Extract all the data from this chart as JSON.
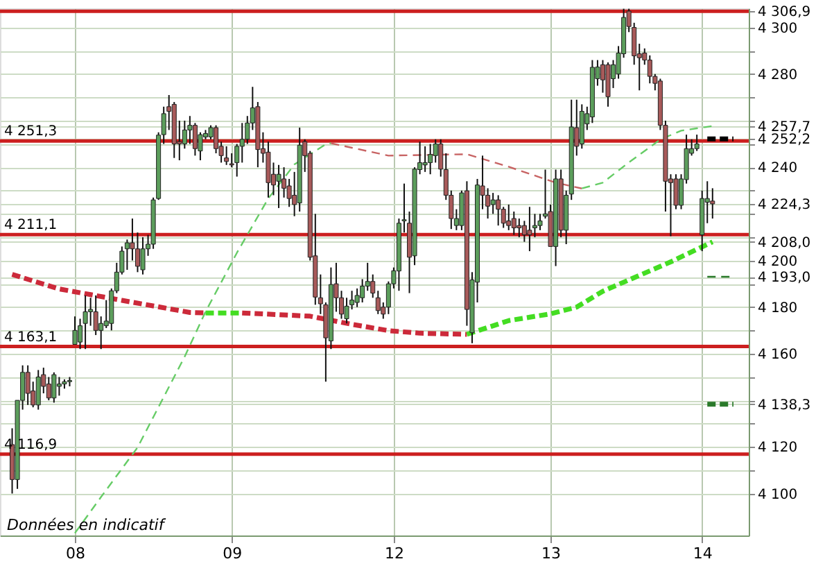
{
  "chart_data": {
    "type": "candlestick",
    "categories": [
      null,
      null,
      null,
      null,
      null,
      null,
      null,
      null,
      null,
      null,
      null,
      null,
      "08",
      null,
      null,
      null,
      null,
      null,
      null,
      null,
      null,
      null,
      null,
      null,
      null,
      null,
      null,
      null,
      null,
      null,
      null,
      null,
      null,
      null,
      null,
      null,
      null,
      null,
      null,
      null,
      null,
      null,
      "09",
      null,
      null,
      null,
      null,
      null,
      null,
      null,
      null,
      null,
      null,
      null,
      null,
      null,
      null,
      null,
      null,
      null,
      null,
      null,
      null,
      null,
      null,
      null,
      null,
      null,
      null,
      null,
      null,
      null,
      null,
      "12",
      null,
      null,
      null,
      null,
      null,
      null,
      null,
      null,
      null,
      null,
      null,
      null,
      null,
      null,
      null,
      null,
      null,
      null,
      null,
      null,
      null,
      null,
      null,
      null,
      null,
      null,
      null,
      null,
      null,
      "13",
      null,
      null,
      null,
      null,
      null,
      null,
      null,
      null,
      null,
      null,
      null,
      null,
      null,
      null,
      null,
      null,
      null,
      null,
      null,
      null,
      null,
      null,
      null,
      null,
      null,
      null,
      null,
      null,
      "14",
      null,
      null,
      null,
      null,
      null,
      null,
      null
    ],
    "ohlc": [
      [
        4121,
        4128,
        4100,
        4106
      ],
      [
        4106,
        4140,
        4102,
        4140
      ],
      [
        4140,
        4155,
        4136,
        4152
      ],
      [
        4152,
        4155,
        4138,
        4143
      ],
      [
        4144,
        4148,
        4137,
        4138
      ],
      [
        4138,
        4153,
        4136,
        4150
      ],
      [
        4151,
        4154,
        4143,
        4146
      ],
      [
        4147,
        4150,
        4140,
        4141
      ],
      [
        4141,
        4152,
        4139,
        4151
      ],
      [
        4146,
        4150,
        4142,
        4147
      ],
      [
        4147,
        4149,
        4145,
        4148
      ],
      [
        4148,
        4150,
        4146,
        4148.5
      ],
      [
        4164,
        4176,
        4164,
        4170
      ],
      [
        4165,
        4175,
        4162,
        4172
      ],
      [
        4173,
        4185,
        4162,
        4178
      ],
      [
        4178,
        4184,
        4172,
        4179
      ],
      [
        4178,
        4185,
        4168,
        4170
      ],
      [
        4170,
        4176,
        4162,
        4173
      ],
      [
        4172,
        4183,
        4171,
        4174
      ],
      [
        4173,
        4188,
        4170,
        4187
      ],
      [
        4187,
        4199,
        4186,
        4195
      ],
      [
        4195,
        4206,
        4194,
        4204
      ],
      [
        4205,
        4209,
        4196,
        4207.6
      ],
      [
        4207.6,
        4218,
        4200,
        4205
      ],
      [
        4205,
        4212,
        4195,
        4197.5
      ],
      [
        4196,
        4210,
        4194,
        4205
      ],
      [
        4205,
        4211,
        4202,
        4207
      ],
      [
        4207,
        4227,
        4205,
        4226
      ],
      [
        4226.6,
        4255,
        4226,
        4253.8
      ],
      [
        4254,
        4266,
        4250,
        4263
      ],
      [
        4266,
        4271,
        4256,
        4264
      ],
      [
        4267,
        4268,
        4244,
        4250
      ],
      [
        4251,
        4260,
        4243,
        4250
      ],
      [
        4250,
        4260,
        4248,
        4256
      ],
      [
        4256,
        4262,
        4250,
        4258
      ],
      [
        4258,
        4259,
        4245,
        4248
      ],
      [
        4247,
        4255,
        4243,
        4254
      ],
      [
        4253,
        4256,
        4252,
        4254.5
      ],
      [
        4253,
        4258,
        4252,
        4257
      ],
      [
        4257,
        4258,
        4246,
        4248
      ],
      [
        4249,
        4251,
        4242,
        4245
      ],
      [
        4244,
        4249,
        4241,
        4242.5
      ],
      [
        4241.5,
        4246,
        4240,
        4241
      ],
      [
        4242,
        4250,
        4236,
        4249
      ],
      [
        4249,
        4259,
        4242,
        4252
      ],
      [
        4252,
        4262,
        4250,
        4259
      ],
      [
        4259,
        4274.5,
        4256,
        4265.5
      ],
      [
        4266,
        4268,
        4240,
        4247.6
      ],
      [
        4248,
        4255,
        4242,
        4246
      ],
      [
        4246.5,
        4251,
        4227,
        4233.4
      ],
      [
        4237,
        4242,
        4228,
        4232.4
      ],
      [
        4234,
        4241,
        4222.5,
        4237
      ],
      [
        4235,
        4240,
        4227,
        4231
      ],
      [
        4232,
        4235,
        4223,
        4226.6
      ],
      [
        4228,
        4238,
        4219,
        4224
      ],
      [
        4224.7,
        4257,
        4221,
        4249.5
      ],
      [
        4251,
        4252,
        4238,
        4245
      ],
      [
        4246,
        4247,
        4200,
        4201.4
      ],
      [
        4202,
        4220,
        4181,
        4184.3
      ],
      [
        4184,
        4194,
        4177,
        4181.4
      ],
      [
        4181,
        4182,
        4148,
        4166.8
      ],
      [
        4165.5,
        4197,
        4162,
        4189.7
      ],
      [
        4190,
        4199,
        4178,
        4184
      ],
      [
        4184,
        4187,
        4175,
        4177
      ],
      [
        4175,
        4184,
        4173,
        4180.4
      ],
      [
        4181,
        4187,
        4179,
        4183
      ],
      [
        4182,
        4188,
        4180,
        4185
      ],
      [
        4184,
        4192,
        4182,
        4189
      ],
      [
        4189,
        4199,
        4187,
        4191
      ],
      [
        4191,
        4194,
        4184,
        4186
      ],
      [
        4184,
        4187,
        4177,
        4178.5
      ],
      [
        4180,
        4182,
        4175,
        4177
      ],
      [
        4180,
        4191,
        4177,
        4190
      ],
      [
        4190,
        4197,
        4188,
        4195.6
      ],
      [
        4195.5,
        4218,
        4187,
        4216
      ],
      [
        4217,
        4233,
        4212,
        4217.5
      ],
      [
        4216,
        4221,
        4186,
        4201.4
      ],
      [
        4202,
        4240,
        4198,
        4239.2
      ],
      [
        4239,
        4251,
        4237,
        4242
      ],
      [
        4241,
        4249,
        4238,
        4242
      ],
      [
        4242,
        4250,
        4237,
        4245.5
      ],
      [
        4245,
        4252,
        4242,
        4250
      ],
      [
        4250,
        4252,
        4236,
        4239.2
      ],
      [
        4239,
        4246,
        4226,
        4228
      ],
      [
        4228,
        4230,
        4213.5,
        4218
      ],
      [
        4215,
        4222,
        4213,
        4218
      ],
      [
        4215,
        4230,
        4213,
        4229
      ],
      [
        4229.9,
        4234,
        4172,
        4179
      ],
      [
        4169,
        4195,
        4164.5,
        4191.7
      ],
      [
        4190.7,
        4235,
        4182,
        4232.4
      ],
      [
        4232,
        4245,
        4222,
        4228
      ],
      [
        4228,
        4231,
        4218,
        4223.3
      ],
      [
        4224,
        4229,
        4220,
        4226
      ],
      [
        4226,
        4228,
        4215,
        4222
      ],
      [
        4222,
        4223,
        4214,
        4216
      ],
      [
        4217,
        4224,
        4213,
        4215
      ],
      [
        4218,
        4221,
        4211,
        4214
      ],
      [
        4215,
        4218,
        4210,
        4214
      ],
      [
        4215,
        4217,
        4208,
        4211
      ],
      [
        4213,
        4223,
        4204,
        4211
      ],
      [
        4214,
        4220,
        4210,
        4215
      ],
      [
        4215,
        4220,
        4213,
        4217
      ],
      [
        4219,
        4239,
        4218,
        4220
      ],
      [
        4221,
        4224,
        4206,
        4206
      ],
      [
        4206,
        4239,
        4197.6,
        4235
      ],
      [
        4235,
        4239,
        4210,
        4213
      ],
      [
        4213,
        4230,
        4207,
        4228
      ],
      [
        4228.5,
        4269,
        4226,
        4257.3
      ],
      [
        4257,
        4269,
        4245,
        4249
      ],
      [
        4250,
        4267,
        4248,
        4264
      ],
      [
        4258.6,
        4266,
        4256,
        4263
      ],
      [
        4261.6,
        4286,
        4259,
        4282.9
      ],
      [
        4278,
        4286,
        4275,
        4283
      ],
      [
        4284,
        4286,
        4272,
        4277.5
      ],
      [
        4284,
        4285,
        4266,
        4270.3
      ],
      [
        4278,
        4286,
        4274,
        4284
      ],
      [
        4280,
        4292,
        4278,
        4289
      ],
      [
        4288.7,
        4308,
        4287,
        4304.3
      ],
      [
        4307,
        4308,
        4298,
        4300.4
      ],
      [
        4300,
        4302,
        4284,
        4287.8
      ],
      [
        4288.7,
        4293,
        4273,
        4287
      ],
      [
        4289,
        4291,
        4284,
        4286
      ],
      [
        4286,
        4288,
        4276,
        4279
      ],
      [
        4279,
        4280,
        4273,
        4276
      ],
      [
        4277,
        4278,
        4256,
        4258
      ],
      [
        4258,
        4260,
        4221,
        4234
      ],
      [
        4235,
        4237,
        4210.4,
        4233.4
      ],
      [
        4235,
        4237,
        4222,
        4223.7
      ],
      [
        4223.7,
        4237,
        4222,
        4235
      ],
      [
        4234.7,
        4254,
        4233,
        4248
      ],
      [
        4246,
        4252,
        4245,
        4248
      ],
      [
        4248,
        4254,
        4247,
        4250
      ],
      [
        4211,
        4230,
        4204,
        4226.6
      ],
      [
        4225,
        4234,
        4216,
        4226.6
      ],
      [
        4225.5,
        4231,
        4218,
        4224.3
      ],
      null,
      null,
      null,
      null,
      null
    ],
    "series": [
      {
        "type": "line",
        "color": "#cc2a3a",
        "line_style": "dashed",
        "values": [
          4194,
          null,
          null,
          null,
          null,
          null,
          null,
          null,
          null,
          4187.8,
          null,
          null,
          null,
          null,
          null,
          null,
          null,
          null,
          null,
          null,
          null,
          4182.9,
          null,
          null,
          null,
          null,
          null,
          null,
          null,
          null,
          null,
          null,
          null,
          null,
          4177.7,
          null,
          null,
          4177.5,
          null,
          null,
          null,
          null,
          null,
          null,
          null,
          null,
          null,
          null,
          null,
          null,
          null,
          null,
          null,
          null,
          null,
          null,
          null,
          null,
          null,
          null,
          null,
          null,
          null,
          null,
          null,
          null,
          null,
          null,
          null,
          null,
          null,
          null,
          null,
          null,
          null,
          null,
          null,
          null,
          null,
          null,
          null,
          null,
          null,
          null,
          null,
          null,
          null,
          null,
          null,
          null,
          null,
          null,
          null,
          null,
          null,
          null,
          null,
          null,
          null,
          null,
          null,
          null,
          null,
          null,
          null,
          null,
          null,
          null,
          null,
          null,
          null,
          null,
          null,
          null,
          null,
          null,
          null,
          null,
          null,
          null,
          null,
          null,
          null,
          null,
          null,
          null,
          null,
          null,
          null,
          null,
          null,
          null,
          null,
          null,
          null,
          null,
          null,
          null,
          null,
          null
        ]
      },
      {
        "type": "line",
        "color": "#44dd22",
        "line_style": "dashed",
        "values": [
          null,
          null,
          null,
          null,
          null,
          null,
          null,
          null,
          null,
          null,
          null,
          null,
          null,
          null,
          null,
          null,
          null,
          null,
          null,
          null,
          null,
          null,
          null,
          null,
          null,
          null,
          null,
          null,
          null,
          null,
          null,
          null,
          null,
          null,
          null,
          null,
          null,
          4177.5,
          null,
          null,
          null,
          null,
          null,
          null,
          4177.5,
          null,
          null,
          null,
          null,
          null,
          null,
          null,
          null,
          null,
          null,
          null,
          null,
          null,
          null,
          null,
          null,
          null,
          null,
          null,
          null,
          null,
          null,
          null,
          null,
          null,
          null,
          null,
          null,
          null,
          null,
          null,
          null,
          null,
          null,
          null,
          null,
          null,
          null,
          null,
          null,
          null,
          null,
          null,
          null,
          null,
          null,
          null,
          null,
          null,
          null,
          null,
          null,
          null,
          null,
          null,
          null,
          null,
          null,
          null,
          null,
          null,
          null,
          null,
          null,
          null,
          null,
          null,
          null,
          null,
          null,
          null,
          null,
          null,
          null,
          null,
          null,
          null,
          null,
          null,
          null,
          null,
          null,
          null,
          null,
          null,
          null,
          null,
          null,
          null,
          null,
          null,
          null,
          null,
          null,
          null
        ]
      },
      {
        "type": "line",
        "color": "#cc2a3a",
        "line_style": "dashed",
        "values": [
          null,
          null,
          null,
          null,
          null,
          null,
          null,
          null,
          null,
          null,
          null,
          null,
          null,
          null,
          null,
          null,
          null,
          null,
          null,
          null,
          null,
          null,
          null,
          null,
          null,
          null,
          null,
          null,
          null,
          null,
          null,
          null,
          null,
          null,
          null,
          null,
          null,
          null,
          null,
          null,
          null,
          null,
          null,
          null,
          4177.5,
          null,
          null,
          null,
          null,
          null,
          null,
          null,
          null,
          null,
          null,
          null,
          null,
          4176.1,
          null,
          null,
          null,
          null,
          null,
          null,
          null,
          4172.6,
          null,
          null,
          null,
          null,
          null,
          null,
          4169.9,
          null,
          null,
          null,
          null,
          null,
          4168.8,
          null,
          null,
          null,
          null,
          null,
          null,
          null,
          null,
          4168.3,
          null,
          null,
          null,
          null,
          null,
          null,
          null,
          null,
          null,
          null,
          null,
          null,
          null,
          null,
          null,
          null,
          null,
          null,
          null,
          null,
          null,
          null,
          null,
          null,
          null,
          null,
          null,
          null,
          null,
          null,
          null,
          null,
          null,
          null,
          null,
          null,
          null,
          null,
          null,
          null,
          null,
          null,
          null,
          null,
          null,
          null,
          null,
          null,
          null,
          null,
          null,
          null
        ]
      },
      {
        "type": "line",
        "color": "#44dd22",
        "line_style": "dashed",
        "values": [
          null,
          null,
          null,
          null,
          null,
          null,
          null,
          null,
          null,
          null,
          null,
          null,
          null,
          null,
          null,
          null,
          null,
          null,
          null,
          null,
          null,
          null,
          null,
          null,
          null,
          null,
          null,
          null,
          null,
          null,
          null,
          null,
          null,
          null,
          null,
          null,
          null,
          null,
          null,
          null,
          null,
          null,
          null,
          null,
          null,
          null,
          null,
          null,
          null,
          null,
          null,
          null,
          null,
          null,
          null,
          null,
          null,
          null,
          null,
          null,
          null,
          null,
          null,
          null,
          null,
          null,
          null,
          null,
          null,
          null,
          null,
          null,
          null,
          null,
          null,
          null,
          null,
          null,
          null,
          null,
          null,
          null,
          null,
          null,
          null,
          null,
          null,
          4168.3,
          null,
          null,
          null,
          null,
          null,
          null,
          null,
          4174.2,
          null,
          null,
          null,
          null,
          null,
          null,
          null,
          4177.1,
          null,
          null,
          null,
          null,
          4180,
          null,
          null,
          null,
          null,
          4186.8,
          null,
          null,
          null,
          null,
          null,
          null,
          4193.6,
          null,
          null,
          null,
          null,
          null,
          4199.4,
          null,
          null,
          null,
          null,
          null,
          null,
          null,
          4208,
          null,
          null,
          null,
          null,
          null
        ]
      },
      {
        "type": "line",
        "color": "#66cc66",
        "line_style": "dashed",
        "values": [
          null,
          null,
          null,
          null,
          null,
          null,
          null,
          null,
          null,
          null,
          null,
          null,
          4083,
          null,
          null,
          null,
          null,
          4098.5,
          null,
          null,
          null,
          null,
          null,
          null,
          4119.8,
          null,
          null,
          null,
          null,
          null,
          null,
          null,
          null,
          4158.7,
          null,
          null,
          null,
          4178,
          null,
          null,
          null,
          null,
          null,
          4203.3,
          null,
          null,
          null,
          null,
          null,
          4226.6,
          null,
          null,
          null,
          null,
          4241.2,
          null,
          null,
          null,
          null,
          null,
          4249.9,
          4250.3,
          null,
          null,
          null,
          null,
          null,
          null,
          null,
          null,
          null,
          null,
          null,
          null,
          null,
          null,
          null,
          null,
          null,
          null,
          null,
          null,
          null,
          null,
          null,
          null,
          null,
          null,
          null,
          null,
          null,
          null,
          null,
          null,
          null,
          null,
          null,
          null,
          null,
          null,
          null,
          null,
          null,
          null,
          null,
          null,
          null,
          null,
          null,
          null,
          null,
          null,
          null,
          null,
          null,
          null,
          null,
          null,
          null,
          null,
          null,
          null,
          null,
          null,
          null,
          null,
          null,
          null,
          null,
          null,
          null,
          null,
          null,
          null,
          null,
          null,
          null,
          null,
          null,
          null
        ]
      },
      {
        "type": "line",
        "color": "#c86464",
        "line_style": "dashed",
        "values": [
          null,
          null,
          null,
          null,
          null,
          null,
          null,
          null,
          null,
          null,
          null,
          null,
          null,
          null,
          null,
          null,
          null,
          null,
          null,
          null,
          null,
          null,
          null,
          null,
          null,
          null,
          null,
          null,
          null,
          null,
          null,
          null,
          null,
          null,
          null,
          null,
          null,
          null,
          null,
          null,
          null,
          null,
          null,
          null,
          null,
          null,
          null,
          null,
          null,
          null,
          null,
          null,
          null,
          null,
          null,
          null,
          null,
          null,
          null,
          null,
          null,
          4250.3,
          null,
          null,
          null,
          null,
          null,
          null,
          null,
          null,
          null,
          null,
          4245,
          null,
          null,
          null,
          null,
          null,
          null,
          null,
          null,
          null,
          null,
          null,
          null,
          null,
          null,
          4245.6,
          null,
          null,
          null,
          null,
          null,
          null,
          null,
          4240.2,
          null,
          null,
          null,
          null,
          null,
          null,
          null,
          null,
          4233.4,
          null,
          null,
          null,
          null,
          4230.9,
          null,
          null,
          null,
          null,
          null,
          null,
          null,
          null,
          null,
          null,
          null,
          null,
          null,
          null,
          null,
          null,
          null,
          null,
          null,
          null,
          null,
          null,
          null,
          null,
          null,
          null,
          null,
          null,
          null,
          null
        ]
      },
      {
        "type": "line",
        "color": "#66cc66",
        "line_style": "dashed",
        "values": [
          null,
          null,
          null,
          null,
          null,
          null,
          null,
          null,
          null,
          null,
          null,
          null,
          null,
          null,
          null,
          null,
          null,
          null,
          null,
          null,
          null,
          null,
          null,
          null,
          null,
          null,
          null,
          null,
          null,
          null,
          null,
          null,
          null,
          null,
          null,
          null,
          null,
          null,
          null,
          null,
          null,
          null,
          null,
          null,
          null,
          null,
          null,
          null,
          null,
          null,
          null,
          null,
          null,
          null,
          null,
          null,
          null,
          null,
          null,
          null,
          null,
          null,
          null,
          null,
          null,
          null,
          null,
          null,
          null,
          null,
          null,
          null,
          null,
          null,
          null,
          null,
          null,
          null,
          null,
          null,
          null,
          null,
          null,
          null,
          null,
          null,
          null,
          null,
          null,
          null,
          null,
          null,
          null,
          null,
          null,
          null,
          null,
          null,
          null,
          null,
          null,
          null,
          null,
          null,
          null,
          null,
          null,
          null,
          null,
          4230.9,
          null,
          null,
          null,
          4233.4,
          null,
          null,
          null,
          null,
          4242.1,
          null,
          null,
          null,
          null,
          null,
          4251.9,
          null,
          null,
          null,
          4255.7,
          null,
          null,
          4256.7,
          null,
          null,
          4257.7,
          null,
          null,
          null,
          null,
          null
        ]
      },
      {
        "type": "line",
        "color": "#000000",
        "line_style": "dashed",
        "values": [
          null,
          null,
          null,
          null,
          null,
          null,
          null,
          null,
          null,
          null,
          null,
          null,
          null,
          null,
          null,
          null,
          null,
          null,
          null,
          null,
          null,
          null,
          null,
          null,
          null,
          null,
          null,
          null,
          null,
          null,
          null,
          null,
          null,
          null,
          null,
          null,
          null,
          null,
          null,
          null,
          null,
          null,
          null,
          null,
          null,
          null,
          null,
          null,
          null,
          null,
          null,
          null,
          null,
          null,
          null,
          null,
          null,
          null,
          null,
          null,
          null,
          null,
          null,
          null,
          null,
          null,
          null,
          null,
          null,
          null,
          null,
          null,
          null,
          null,
          null,
          null,
          null,
          null,
          null,
          null,
          null,
          null,
          null,
          null,
          null,
          null,
          null,
          null,
          null,
          null,
          null,
          null,
          null,
          null,
          null,
          null,
          null,
          null,
          null,
          null,
          null,
          null,
          null,
          null,
          null,
          null,
          null,
          null,
          null,
          null,
          null,
          null,
          null,
          null,
          null,
          null,
          null,
          null,
          null,
          null,
          null,
          null,
          null,
          null,
          null,
          null,
          null,
          null,
          null,
          null,
          null,
          null,
          null,
          4252.2,
          null,
          null,
          null,
          null,
          4252.2,
          null
        ]
      },
      {
        "type": "line",
        "color": "#2a7a2a",
        "line_style": "dashed",
        "values": [
          null,
          null,
          null,
          null,
          null,
          null,
          null,
          null,
          null,
          null,
          null,
          null,
          null,
          null,
          null,
          null,
          null,
          null,
          null,
          null,
          null,
          null,
          null,
          null,
          null,
          null,
          null,
          null,
          null,
          null,
          null,
          null,
          null,
          null,
          null,
          null,
          null,
          null,
          null,
          null,
          null,
          null,
          null,
          null,
          null,
          null,
          null,
          null,
          null,
          null,
          null,
          null,
          null,
          null,
          null,
          null,
          null,
          null,
          null,
          null,
          null,
          null,
          null,
          null,
          null,
          null,
          null,
          null,
          null,
          null,
          null,
          null,
          null,
          null,
          null,
          null,
          null,
          null,
          null,
          null,
          null,
          null,
          null,
          null,
          null,
          null,
          null,
          null,
          null,
          null,
          null,
          null,
          null,
          null,
          null,
          null,
          null,
          null,
          null,
          null,
          null,
          null,
          null,
          null,
          null,
          null,
          null,
          null,
          null,
          null,
          null,
          null,
          null,
          null,
          null,
          null,
          null,
          null,
          null,
          null,
          null,
          null,
          null,
          null,
          null,
          null,
          null,
          null,
          null,
          null,
          null,
          null,
          null,
          4193.0,
          null,
          null,
          null,
          null,
          4193.0,
          null
        ]
      },
      {
        "type": "line",
        "color": "#2a7a2a",
        "line_style": "dashed",
        "values": [
          null,
          null,
          null,
          null,
          null,
          null,
          null,
          null,
          null,
          null,
          null,
          null,
          null,
          null,
          null,
          null,
          null,
          null,
          null,
          null,
          null,
          null,
          null,
          null,
          null,
          null,
          null,
          null,
          null,
          null,
          null,
          null,
          null,
          null,
          null,
          null,
          null,
          null,
          null,
          null,
          null,
          null,
          null,
          null,
          null,
          null,
          null,
          null,
          null,
          null,
          null,
          null,
          null,
          null,
          null,
          null,
          null,
          null,
          null,
          null,
          null,
          null,
          null,
          null,
          null,
          null,
          null,
          null,
          null,
          null,
          null,
          null,
          null,
          null,
          null,
          null,
          null,
          null,
          null,
          null,
          null,
          null,
          null,
          null,
          null,
          null,
          null,
          null,
          null,
          null,
          null,
          null,
          null,
          null,
          null,
          null,
          null,
          null,
          null,
          null,
          null,
          null,
          null,
          null,
          null,
          null,
          null,
          null,
          null,
          null,
          null,
          null,
          null,
          null,
          null,
          null,
          null,
          null,
          null,
          null,
          null,
          null,
          null,
          null,
          null,
          null,
          null,
          null,
          null,
          null,
          null,
          null,
          null,
          4138.3,
          null,
          null,
          null,
          null,
          4138.3,
          null
        ]
      }
    ],
    "ylim": [
      4082,
      4308.2
    ],
    "yticks": [
      {
        "value": 4100,
        "label": "4 100"
      },
      {
        "value": 4110,
        "label": null
      },
      {
        "value": 4120,
        "label": "4 120"
      },
      {
        "value": 4130,
        "label": null
      },
      {
        "value": 4138.3,
        "label": "4 138,3"
      },
      {
        "value": 4140,
        "label": null
      },
      {
        "value": 4150,
        "label": null
      },
      {
        "value": 4160,
        "label": "4 160"
      },
      {
        "value": 4170,
        "label": null
      },
      {
        "value": 4180,
        "label": "4 180"
      },
      {
        "value": 4190,
        "label": null
      },
      {
        "value": 4193.0,
        "label": "4 193,0"
      },
      {
        "value": 4200,
        "label": "4 200"
      },
      {
        "value": 4208.0,
        "label": "4 208,0"
      },
      {
        "value": 4210,
        "label": null
      },
      {
        "value": 4220,
        "label": null
      },
      {
        "value": 4224.3,
        "label": "4 224,3"
      },
      {
        "value": 4230,
        "label": null
      },
      {
        "value": 4240,
        "label": "4 240"
      },
      {
        "value": 4250,
        "label": null
      },
      {
        "value": 4252.2,
        "label": "4 252,2"
      },
      {
        "value": 4257.7,
        "label": "4 257,7"
      },
      {
        "value": 4260,
        "label": null
      },
      {
        "value": 4270,
        "label": null
      },
      {
        "value": 4280,
        "label": "4 280"
      },
      {
        "value": 4290,
        "label": null
      },
      {
        "value": 4300,
        "label": "4 300"
      },
      {
        "value": 4306.9,
        "label": "4 306,9"
      }
    ],
    "grid": true,
    "marker": "none",
    "ref_lines": [
      {
        "axis": "y",
        "value": 4306.9,
        "label": null,
        "color": "#cc1f1f"
      },
      {
        "axis": "y",
        "value": 4251.3,
        "label": "4 251,3",
        "color": "#cc1f1f"
      },
      {
        "axis": "y",
        "value": 4211.1,
        "label": "4 211,1",
        "color": "#cc1f1f"
      },
      {
        "axis": "y",
        "value": 4163.1,
        "label": "4 163,1",
        "color": "#cc1f1f"
      },
      {
        "axis": "y",
        "value": 4116.9,
        "label": "4 116,9",
        "color": "#cc1f1f"
      }
    ],
    "annotations": [
      "Données en indicatif"
    ]
  }
}
